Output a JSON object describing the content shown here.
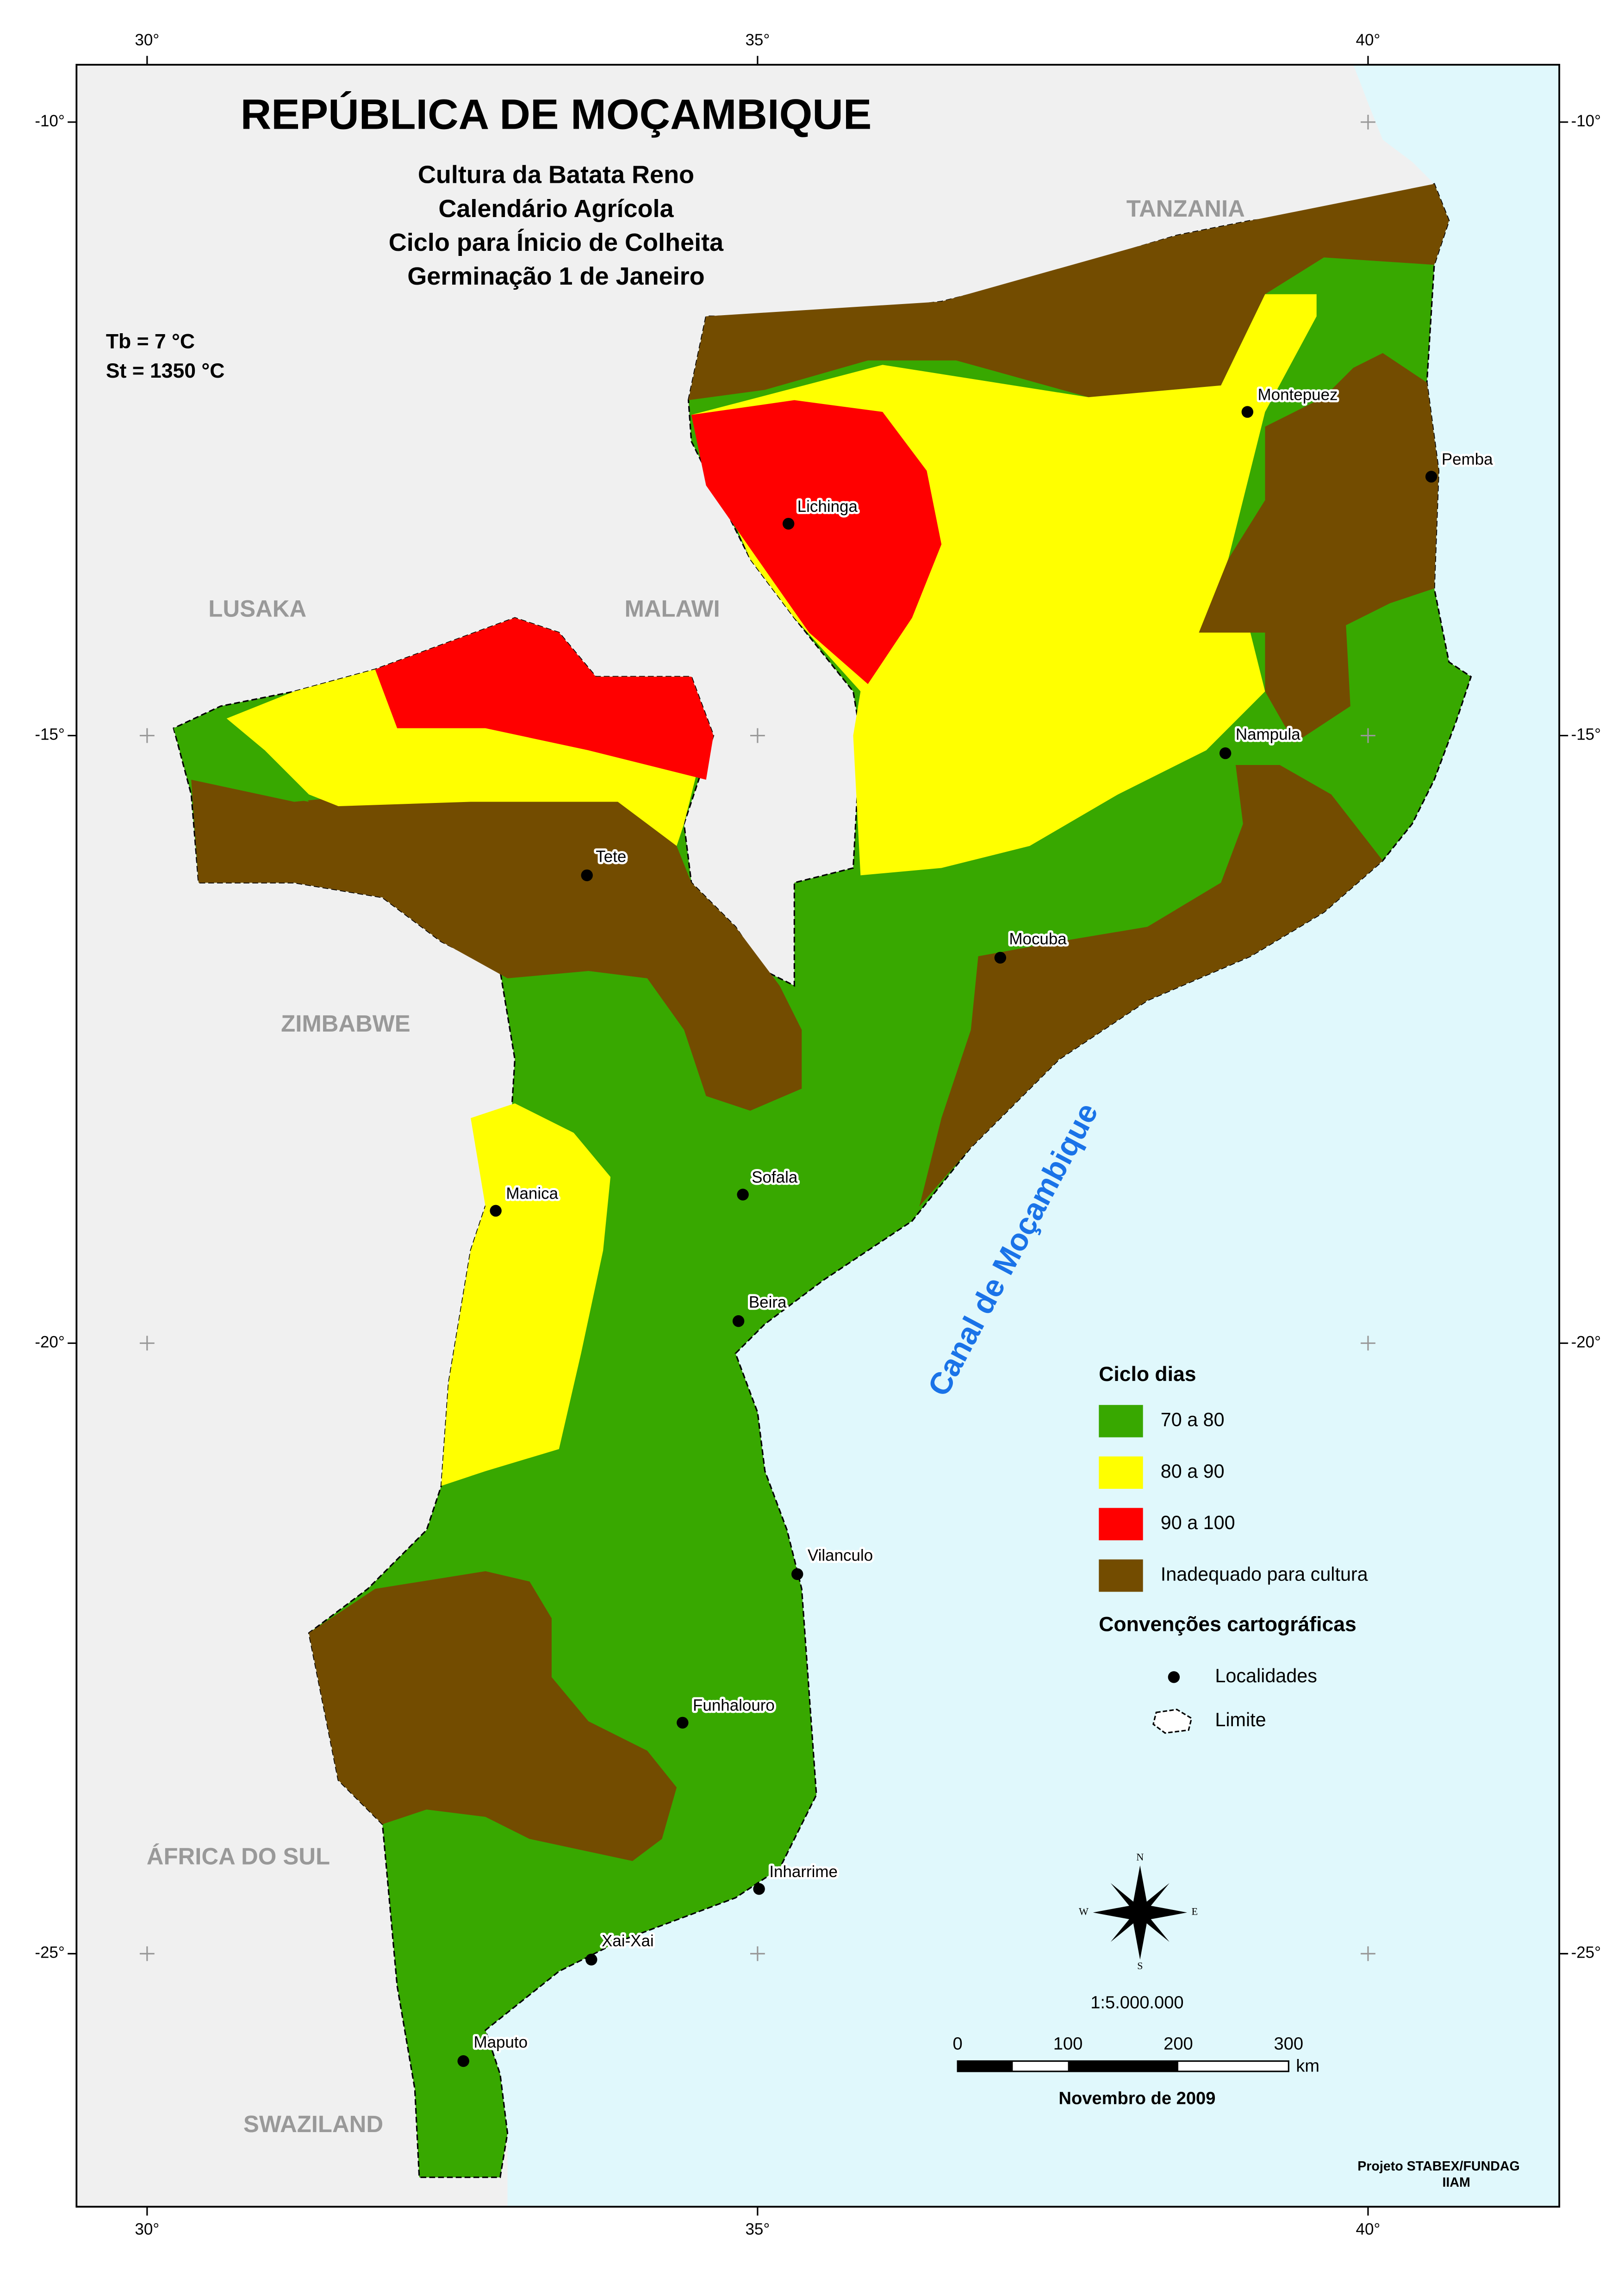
{
  "title": "REPÚBLICA DE MOÇAMBIQUE",
  "subtitle": [
    "Cultura da Batata Reno",
    "Calendário Agrícola",
    "Ciclo para Ínicio de Colheita",
    "Germinação 1 de Janeiro"
  ],
  "parameters": [
    "Tb = 7 °C",
    "St =  1350 °C"
  ],
  "countries": [
    "TANZANIA",
    "LUSAKA",
    "MALAWI",
    "ZIMBABWE",
    "ÁFRICA DO SUL",
    "SWAZILAND"
  ],
  "sea_label": "Canal de Moçambique",
  "cities": [
    "Lichinga",
    "Montepuez",
    "Pemba",
    "Nampula",
    "Tete",
    "Mocuba",
    "Sofala",
    "Manica",
    "Beira",
    "Vilanculo",
    "Funhalouro",
    "Inharrime",
    "Xai-Xai",
    "Maputo"
  ],
  "graticule": {
    "longitudes": [
      "30°",
      "35°",
      "40°"
    ],
    "latitudes": [
      "-10°",
      "-15°",
      "-20°",
      "-25°"
    ]
  },
  "legend": {
    "title": "Ciclo dias",
    "items": [
      {
        "label": "70 a 80",
        "color": "#38a800"
      },
      {
        "label": "80 a 90",
        "color": "#ffff00"
      },
      {
        "label": "90 a 100",
        "color": "#ff0000"
      },
      {
        "label": "Inadequado para cultura",
        "color": "#734c00"
      }
    ],
    "conventions_title": "Convenções cartográficas",
    "conventions": [
      "Localidades",
      "Limite"
    ]
  },
  "compass": [
    "N",
    "S",
    "E",
    "W"
  ],
  "scale": "1:5.000.000",
  "scale_bar": {
    "labels": [
      "0",
      "100",
      "200",
      "300"
    ],
    "unit": "km"
  },
  "date": "Novembro de 2009",
  "credits": [
    "Projeto STABEX/FUNDAG",
    "IIAM"
  ]
}
